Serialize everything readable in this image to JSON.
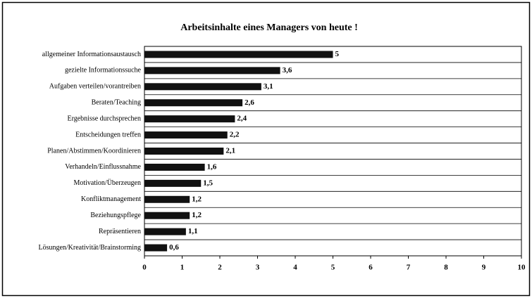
{
  "chart_data": {
    "type": "barh",
    "title": "Arbeitsinhalte eines Managers von heute !",
    "categories": [
      "allgemeiner Informationsaustausch",
      "gezielte Informationssuche",
      "Aufgaben verteilen/vorantreiben",
      "Beraten/Teaching",
      "Ergebnisse durchsprechen",
      "Entscheidungen treffen",
      "Planen/Abstimmen/Koordinieren",
      "Verhandeln/Einflussnahme",
      "Motivation/Überzeugen",
      "Konfliktmanagement",
      "Beziehungspflege",
      "Repräsentieren",
      "Lösungen/Kreativität/Brainstorming"
    ],
    "values": [
      5,
      3.6,
      3.1,
      2.6,
      2.4,
      2.2,
      2.1,
      1.6,
      1.5,
      1.2,
      1.2,
      1.1,
      0.6
    ],
    "value_labels": [
      "5",
      "3,6",
      "3,1",
      "2,6",
      "2,4",
      "2,2",
      "2,1",
      "1,6",
      "1,5",
      "1,2",
      "1,2",
      "1,1",
      "0,6"
    ],
    "color": "#111111",
    "xlim": [
      0,
      10
    ],
    "xticks": [
      0,
      1,
      2,
      3,
      4,
      5,
      6,
      7,
      8,
      9,
      10
    ]
  }
}
